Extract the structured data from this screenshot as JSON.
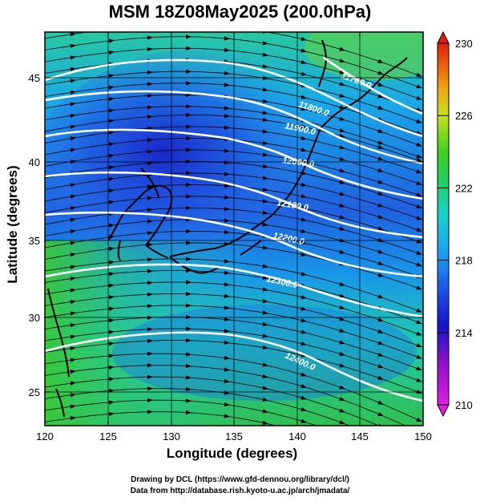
{
  "title": "MSM 18Z08May2025 (200.0hPa)",
  "x_axis": {
    "label": "Longitude (degrees)",
    "ticks": [
      "120",
      "125",
      "130",
      "135",
      "140",
      "145",
      "150"
    ]
  },
  "y_axis": {
    "label": "Latitude  (degrees)",
    "ticks": [
      "25",
      "30",
      "35",
      "40",
      "45"
    ]
  },
  "colorbar": {
    "ticks": [
      "230",
      "226",
      "222",
      "218",
      "214",
      "210"
    ],
    "min": 210,
    "max": 230
  },
  "contours": {
    "labels": [
      "11700.0",
      "11800.0",
      "11900.0",
      "12000.0",
      "12100.0",
      "12200.0",
      "12300.0",
      "12400.0"
    ],
    "color": "#ffffff"
  },
  "credits": {
    "line1": "Drawing by DCL (https://www.gfd-dennou.org/library/dcl/)",
    "line2": "Data from http://database.rish.kyoto-u.ac.jp/arch/jmadata/"
  },
  "colors": {
    "land_outline": "#000000",
    "streamlines": "#000000",
    "frame": "#000000"
  }
}
